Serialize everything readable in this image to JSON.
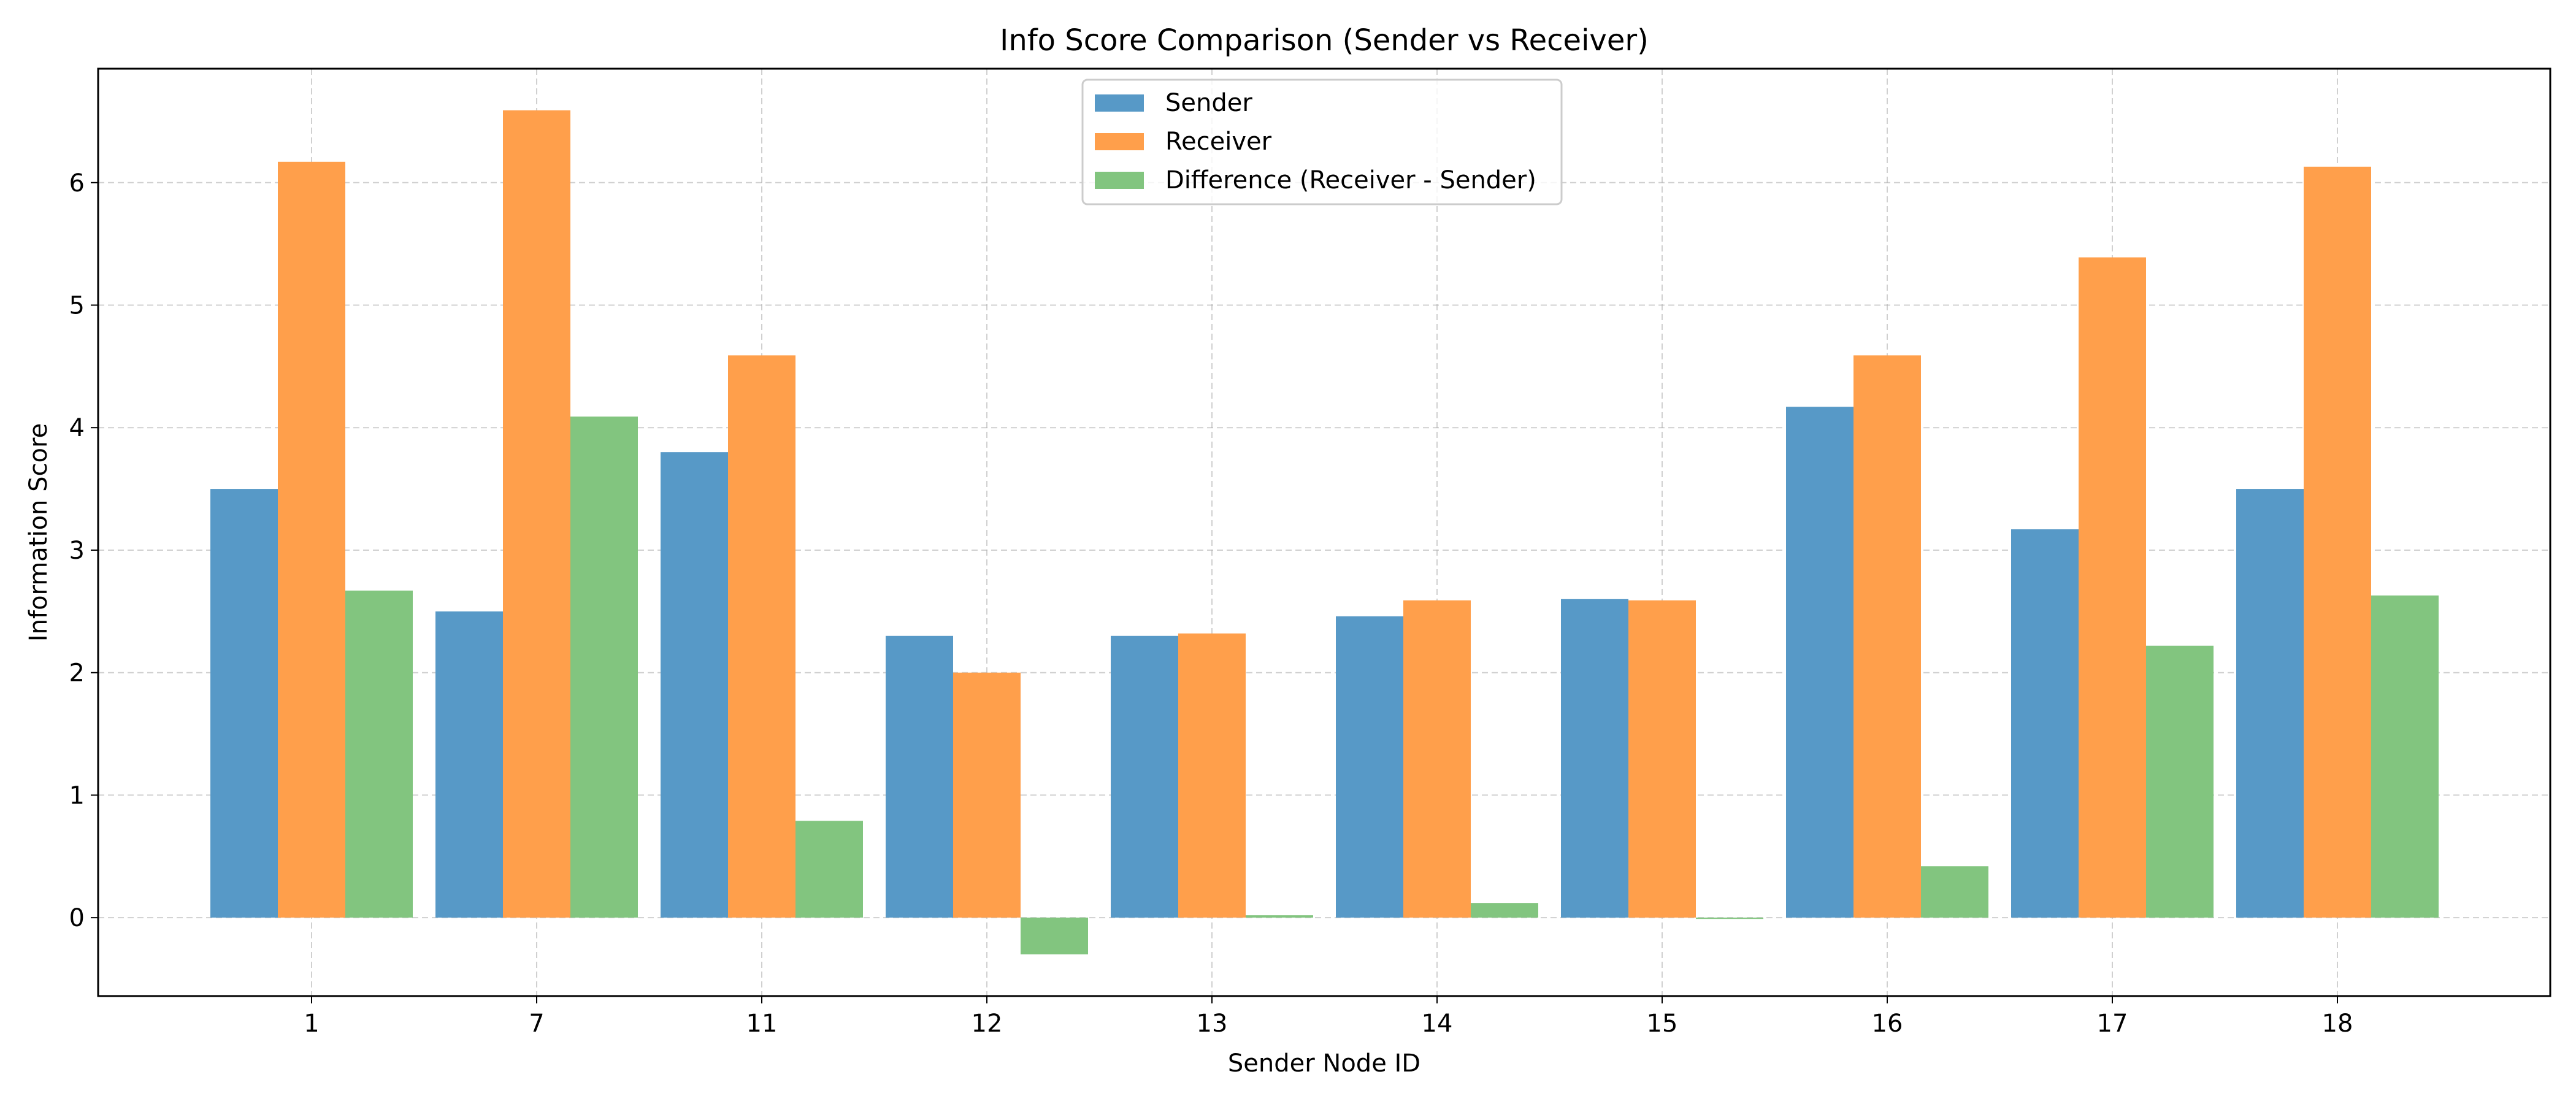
{
  "chart_data": {
    "type": "bar",
    "title": "Info Score Comparison (Sender vs Receiver)",
    "xlabel": "Sender Node ID",
    "ylabel": "Information Score",
    "categories": [
      "1",
      "7",
      "11",
      "12",
      "13",
      "14",
      "15",
      "16",
      "17",
      "18"
    ],
    "series": [
      {
        "name": "Sender",
        "color": "#5799c7",
        "values": [
          3.5,
          2.5,
          3.8,
          2.3,
          2.3,
          2.46,
          2.6,
          4.17,
          3.17,
          3.5
        ]
      },
      {
        "name": "Receiver",
        "color": "#ff9f4b",
        "values": [
          6.17,
          6.59,
          4.59,
          2.0,
          2.32,
          2.59,
          2.59,
          4.59,
          5.39,
          6.13
        ]
      },
      {
        "name": "Difference (Receiver - Sender)",
        "color": "#82c57f",
        "values": [
          2.67,
          4.09,
          0.79,
          -0.3,
          0.02,
          0.12,
          -0.01,
          0.42,
          2.22,
          2.63
        ]
      }
    ],
    "yticks": [
      0,
      1,
      2,
      3,
      4,
      5,
      6
    ],
    "ylim": [
      -0.64,
      6.93
    ],
    "grid": true,
    "legend_position": "top-center"
  }
}
